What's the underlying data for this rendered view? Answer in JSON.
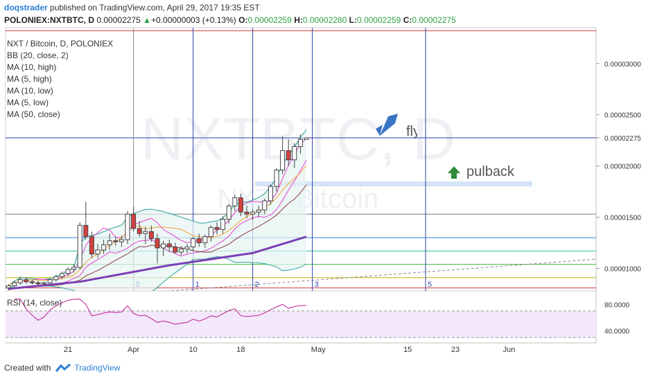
{
  "header": {
    "user": "doqstrader",
    "published_text": "published on TradingView.com, April 29, 2017 19:35 EST",
    "symbol": "POLONIEX:NXTBTC, D",
    "last": "0.00002275",
    "change": "+0.00000003 (+0.13%)",
    "o_label": "O:",
    "o_val": "0.00002259",
    "h_label": "H:",
    "h_val": "0.00002280",
    "l_label": "L:",
    "l_val": "0.00002259",
    "c_label": "C:",
    "c_val": "0.00002275"
  },
  "legend": {
    "title": "NXT / Bitcoin, D, POLONIEX",
    "items": [
      "BB (20, close, 2)",
      "MA (10, high)",
      "MA (5, high)",
      "MA (10, low)",
      "MA (5, low)",
      "MA (50, close)"
    ]
  },
  "rsi_legend": "RSI (14, close)",
  "watermark": {
    "main": "NXTBTC, D",
    "sub": "NXT / Bitcoin"
  },
  "annotations": {
    "fly": "fly",
    "pulback": "pulback"
  },
  "footer": {
    "created": "Created with",
    "brand": "TradingView"
  },
  "colors": {
    "up": "#ffffff",
    "down": "#d64040",
    "bb": "#2aa198",
    "ma_pink": "#e83fd0",
    "ma_orange": "#f2a233",
    "ma_brown": "#8a3c3c",
    "ma50": "#7b3fb5",
    "accent": "#2a7fd4"
  },
  "chart_data": {
    "type": "candlestick",
    "price_axis_ticks": [
      "0.00003000",
      "0.00002500",
      "0.00002275",
      "0.00002000",
      "0.00001500",
      "0.00001000"
    ],
    "price_axis_values": [
      3e-05,
      2.5e-05,
      2.275e-05,
      2e-05,
      1.5e-05,
      1e-05
    ],
    "ylim": [
      7.8e-06,
      3.35e-05
    ],
    "date_ticks": [
      "21",
      "Apr",
      "10",
      "18",
      "May",
      "15",
      "23",
      "Jun"
    ],
    "date_tick_index": [
      10,
      21,
      31,
      39,
      52,
      67,
      75,
      84
    ],
    "vline_labels": [
      "0",
      "1",
      "2",
      "3",
      "5"
    ],
    "vline_index": [
      21,
      31,
      41,
      51,
      70
    ],
    "rsi_ticks": [
      "80.0000",
      "40.0000"
    ],
    "rsi_values": [
      80,
      40
    ],
    "rsi_ylim": [
      25,
      95
    ],
    "candles": [
      [
        8.1e-06,
        8.4e-06,
        7.9e-06,
        8.3e-06
      ],
      [
        8.3e-06,
        8.8e-06,
        8.2e-06,
        8.6e-06
      ],
      [
        8.6e-06,
        9.2e-06,
        8.4e-06,
        8.9e-06
      ],
      [
        8.9e-06,
        9.1e-06,
        8.5e-06,
        8.7e-06
      ],
      [
        8.7e-06,
        8.9e-06,
        8.4e-06,
        8.6e-06
      ],
      [
        8.6e-06,
        8.8e-06,
        8.3e-06,
        8.5e-06
      ],
      [
        8.5e-06,
        8.7e-06,
        8.3e-06,
        8.6e-06
      ],
      [
        8.6e-06,
        9e-06,
        8.5e-06,
        8.9e-06
      ],
      [
        8.9e-06,
        9.4e-06,
        8.7e-06,
        9.2e-06
      ],
      [
        9.2e-06,
        9.7e-06,
        9e-06,
        9.5e-06
      ],
      [
        9.5e-06,
        1.01e-05,
        9.3e-06,
        9.9e-06
      ],
      [
        9.9e-06,
        1.04e-05,
        9.6e-06,
        1.01e-05
      ],
      [
        1.01e-05,
        1.45e-05,
        9.9e-06,
        1.42e-05
      ],
      [
        1.42e-05,
        1.65e-05,
        1.28e-05,
        1.31e-05
      ],
      [
        1.31e-05,
        1.36e-05,
        1.1e-05,
        1.14e-05
      ],
      [
        1.14e-05,
        1.24e-05,
        1.1e-05,
        1.18e-05
      ],
      [
        1.18e-05,
        1.28e-05,
        1.14e-05,
        1.23e-05
      ],
      [
        1.23e-05,
        1.34e-05,
        1.18e-05,
        1.27e-05
      ],
      [
        1.27e-05,
        1.31e-05,
        1.22e-05,
        1.26e-05
      ],
      [
        1.26e-05,
        1.32e-05,
        1.21e-05,
        1.28e-05
      ],
      [
        1.28e-05,
        1.56e-05,
        1.24e-05,
        1.53e-05
      ],
      [
        1.53e-05,
        1.6e-05,
        1.36e-05,
        1.39e-05
      ],
      [
        1.39e-05,
        1.46e-05,
        1.31e-05,
        1.34e-05
      ],
      [
        1.34e-05,
        1.41e-05,
        1.24e-05,
        1.36e-05
      ],
      [
        1.36e-05,
        1.42e-05,
        1.26e-05,
        1.29e-05
      ],
      [
        1.29e-05,
        1.34e-05,
        1.05e-05,
        1.2e-05
      ],
      [
        1.2e-05,
        1.27e-05,
        1.12e-05,
        1.24e-05
      ],
      [
        1.24e-05,
        1.28e-05,
        1.16e-05,
        1.21e-05
      ],
      [
        1.21e-05,
        1.25e-05,
        1.14e-05,
        1.16e-05
      ],
      [
        1.16e-05,
        1.22e-05,
        1.13e-05,
        1.19e-05
      ],
      [
        1.19e-05,
        1.24e-05,
        1.15e-05,
        1.21e-05
      ],
      [
        1.21e-05,
        1.31e-05,
        1.17e-05,
        1.29e-05
      ],
      [
        1.29e-05,
        1.34e-05,
        1.21e-05,
        1.25e-05
      ],
      [
        1.25e-05,
        1.33e-05,
        1.2e-05,
        1.31e-05
      ],
      [
        1.31e-05,
        1.42e-05,
        1.26e-05,
        1.4e-05
      ],
      [
        1.4e-05,
        1.45e-05,
        1.33e-05,
        1.38e-05
      ],
      [
        1.38e-05,
        1.51e-05,
        1.34e-05,
        1.48e-05
      ],
      [
        1.48e-05,
        1.63e-05,
        1.44e-05,
        1.61e-05
      ],
      [
        1.61e-05,
        1.72e-05,
        1.56e-05,
        1.69e-05
      ],
      [
        1.69e-05,
        1.73e-05,
        1.51e-05,
        1.55e-05
      ],
      [
        1.55e-05,
        1.61e-05,
        1.49e-05,
        1.53e-05
      ],
      [
        1.53e-05,
        1.58e-05,
        1.47e-05,
        1.55e-05
      ],
      [
        1.55e-05,
        1.61e-05,
        1.5e-05,
        1.57e-05
      ],
      [
        1.57e-05,
        1.68e-05,
        1.53e-05,
        1.66e-05
      ],
      [
        1.66e-05,
        1.82e-05,
        1.62e-05,
        1.8e-05
      ],
      [
        1.8e-05,
        1.98e-05,
        1.75e-05,
        1.96e-05
      ],
      [
        1.96e-05,
        2.29e-05,
        1.92e-05,
        2.15e-05
      ],
      [
        2.15e-05,
        2.26e-05,
        2e-05,
        2.06e-05
      ],
      [
        2.06e-05,
        2.22e-05,
        1.98e-05,
        2.19e-05
      ],
      [
        2.19e-05,
        2.31e-05,
        2.12e-05,
        2.26e-05
      ],
      [
        2.259e-05,
        2.28e-05,
        2.259e-05,
        2.275e-05
      ]
    ],
    "ma50_line": [
      8e-06,
      8.7e-06,
      1.03e-05,
      1.15e-05,
      1.31e-05
    ],
    "ma50_index": [
      0,
      12,
      27,
      41,
      50
    ]
  }
}
